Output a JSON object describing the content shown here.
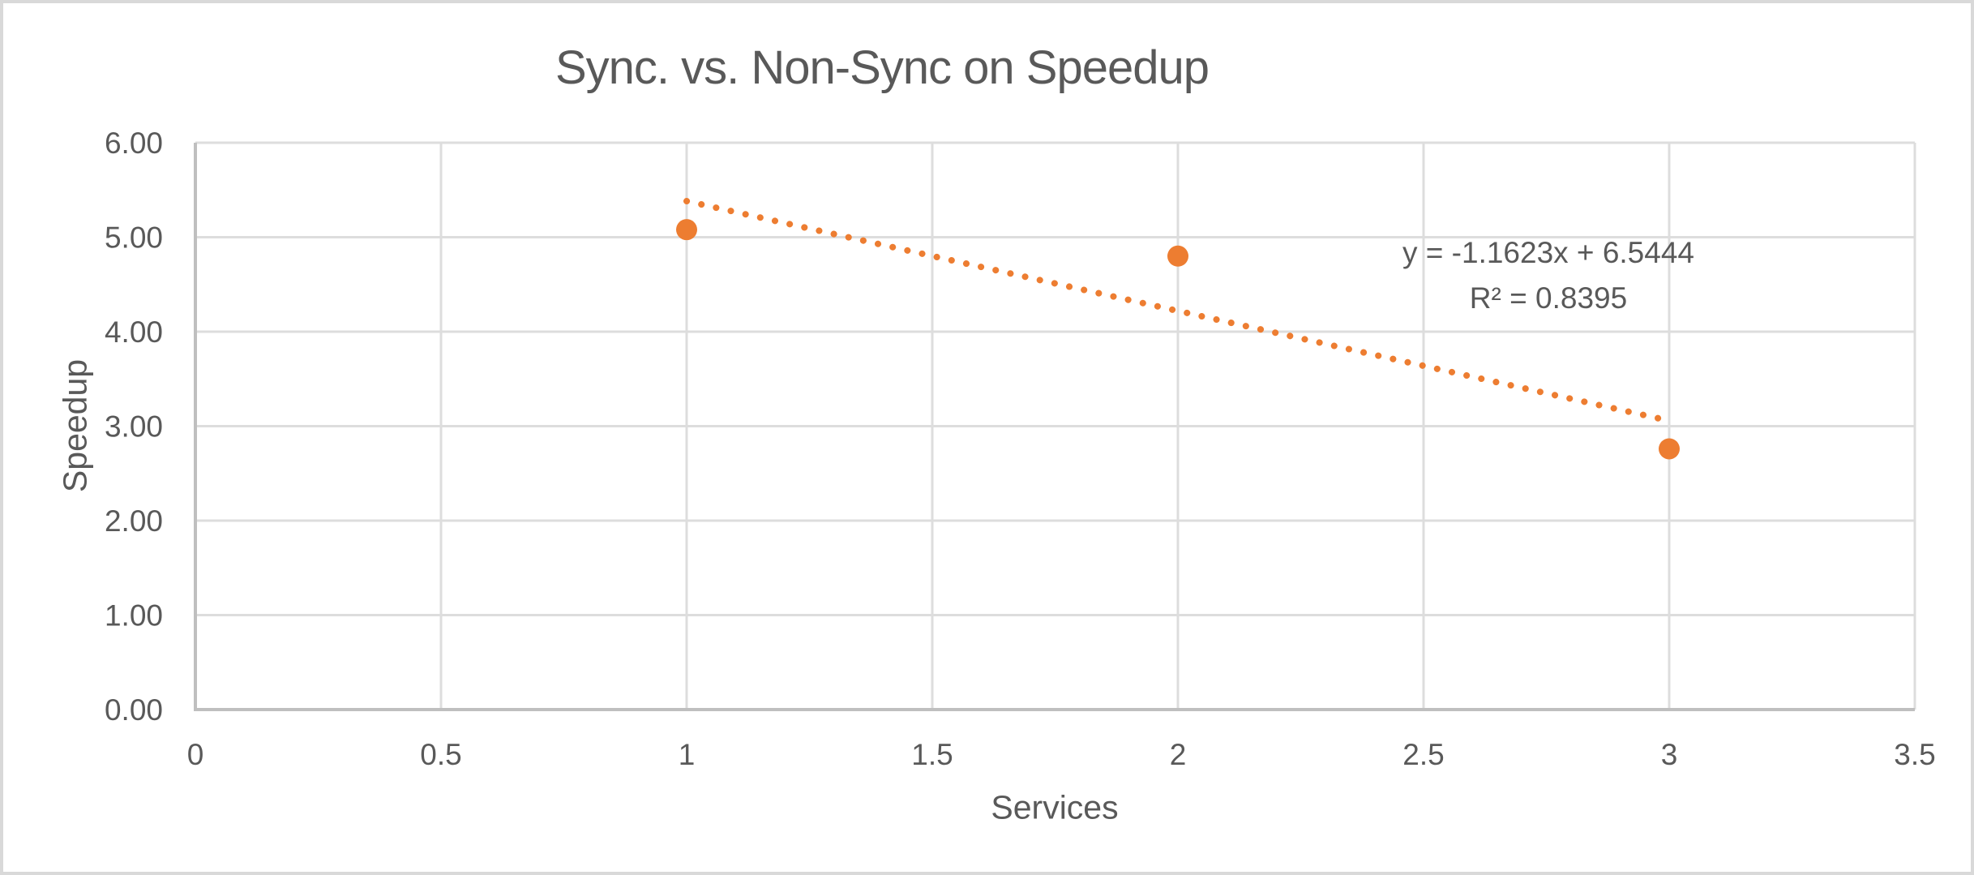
{
  "chart_data": {
    "type": "scatter",
    "title": "Sync. vs. Non-Sync on Speedup",
    "xlabel": "Services",
    "ylabel": "Speedup",
    "xlim": [
      0,
      3.5
    ],
    "ylim": [
      0,
      6
    ],
    "grid": true,
    "legend": false,
    "xticks": [
      {
        "value": 0,
        "label": "0"
      },
      {
        "value": 0.5,
        "label": "0.5"
      },
      {
        "value": 1,
        "label": "1"
      },
      {
        "value": 1.5,
        "label": "1.5"
      },
      {
        "value": 2,
        "label": "2"
      },
      {
        "value": 2.5,
        "label": "2.5"
      },
      {
        "value": 3,
        "label": "3"
      },
      {
        "value": 3.5,
        "label": "3.5"
      }
    ],
    "yticks": [
      {
        "value": 0,
        "label": "0.00"
      },
      {
        "value": 1,
        "label": "1.00"
      },
      {
        "value": 2,
        "label": "2.00"
      },
      {
        "value": 3,
        "label": "3.00"
      },
      {
        "value": 4,
        "label": "4.00"
      },
      {
        "value": 5,
        "label": "5.00"
      },
      {
        "value": 6,
        "label": "6.00"
      }
    ],
    "series": [
      {
        "name": "Speedup",
        "marker": "circle",
        "marker_color": "#ED7D31",
        "points": [
          {
            "x": 1,
            "y": 5.08
          },
          {
            "x": 2,
            "y": 4.8
          },
          {
            "x": 3,
            "y": 2.76
          }
        ]
      }
    ],
    "trendline": {
      "slope": -1.1623,
      "intercept": 6.5444,
      "x_start": 1,
      "x_end": 3,
      "style": "dotted",
      "color": "#ED7D31",
      "equation": "y = -1.1623x + 6.5444",
      "r_squared": "R² = 0.8395"
    },
    "colors": {
      "grid": "#DDDDDD",
      "axis_line": "#BFBFBF",
      "text": "#595959",
      "background": "#FFFFFF",
      "frame_border": "#D9D9D9"
    }
  }
}
